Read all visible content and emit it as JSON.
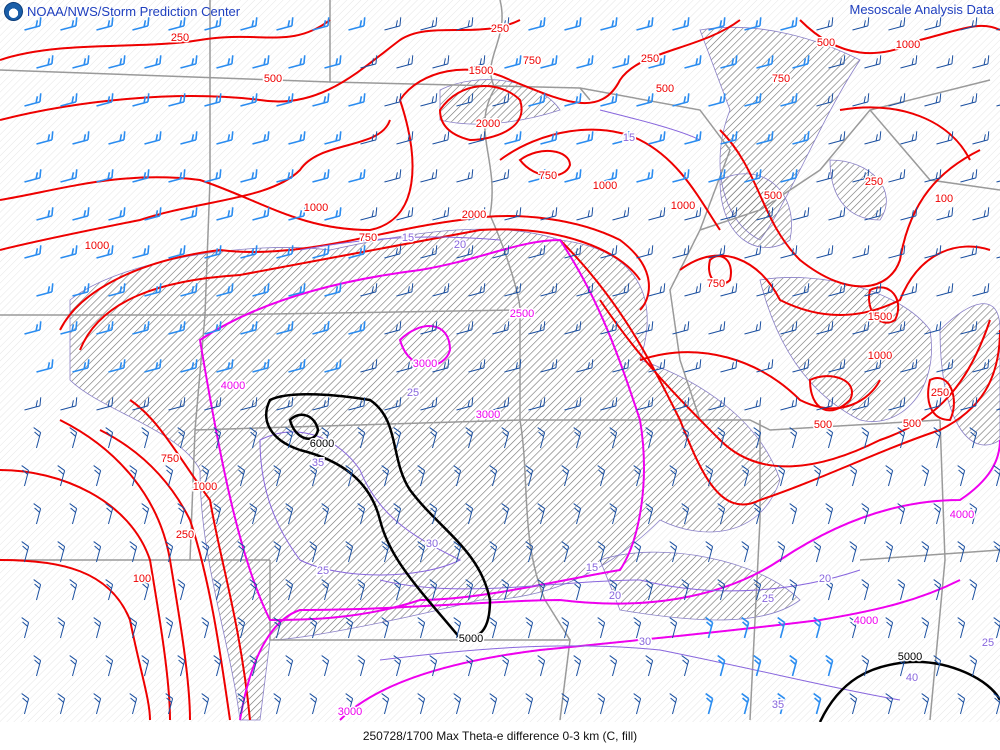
{
  "header": {
    "left_title": "NOAA/NWS/Storm Prediction Center",
    "right_title": "Mesoscale Analysis Data",
    "logo_icon": "noaa-logo"
  },
  "footer": {
    "caption": "250728/1700 Max Theta-e difference 0-3 km (C, fill)"
  },
  "map": {
    "colors": {
      "red_contour": "#ee0000",
      "magenta_contour": "#ee00ee",
      "black_contour": "#000000",
      "purple_contour": "#8866dd",
      "wind_barbs_dark": "#1a4fa0",
      "wind_barbs_light": "#2a8cf0",
      "borders": "#999999",
      "hatch_fill": "#888888"
    },
    "red_labels": [
      "250",
      "500",
      "1500",
      "750",
      "250",
      "250",
      "500",
      "750",
      "500",
      "1000",
      "2000",
      "750",
      "1000",
      "1000",
      "1000",
      "750",
      "2000",
      "1000",
      "750",
      "500",
      "250",
      "100",
      "1500",
      "1000",
      "500",
      "500",
      "250",
      "750",
      "1000",
      "250",
      "100"
    ],
    "magenta_labels": [
      "2500",
      "3000",
      "4000",
      "3000",
      "4000",
      "3000",
      "4000"
    ],
    "black_labels": [
      "6000",
      "5000",
      "5000"
    ],
    "purple_labels": [
      "15",
      "15",
      "20",
      "25",
      "30",
      "25",
      "15",
      "20",
      "25",
      "20",
      "30",
      "35",
      "40",
      "25",
      "35"
    ]
  }
}
